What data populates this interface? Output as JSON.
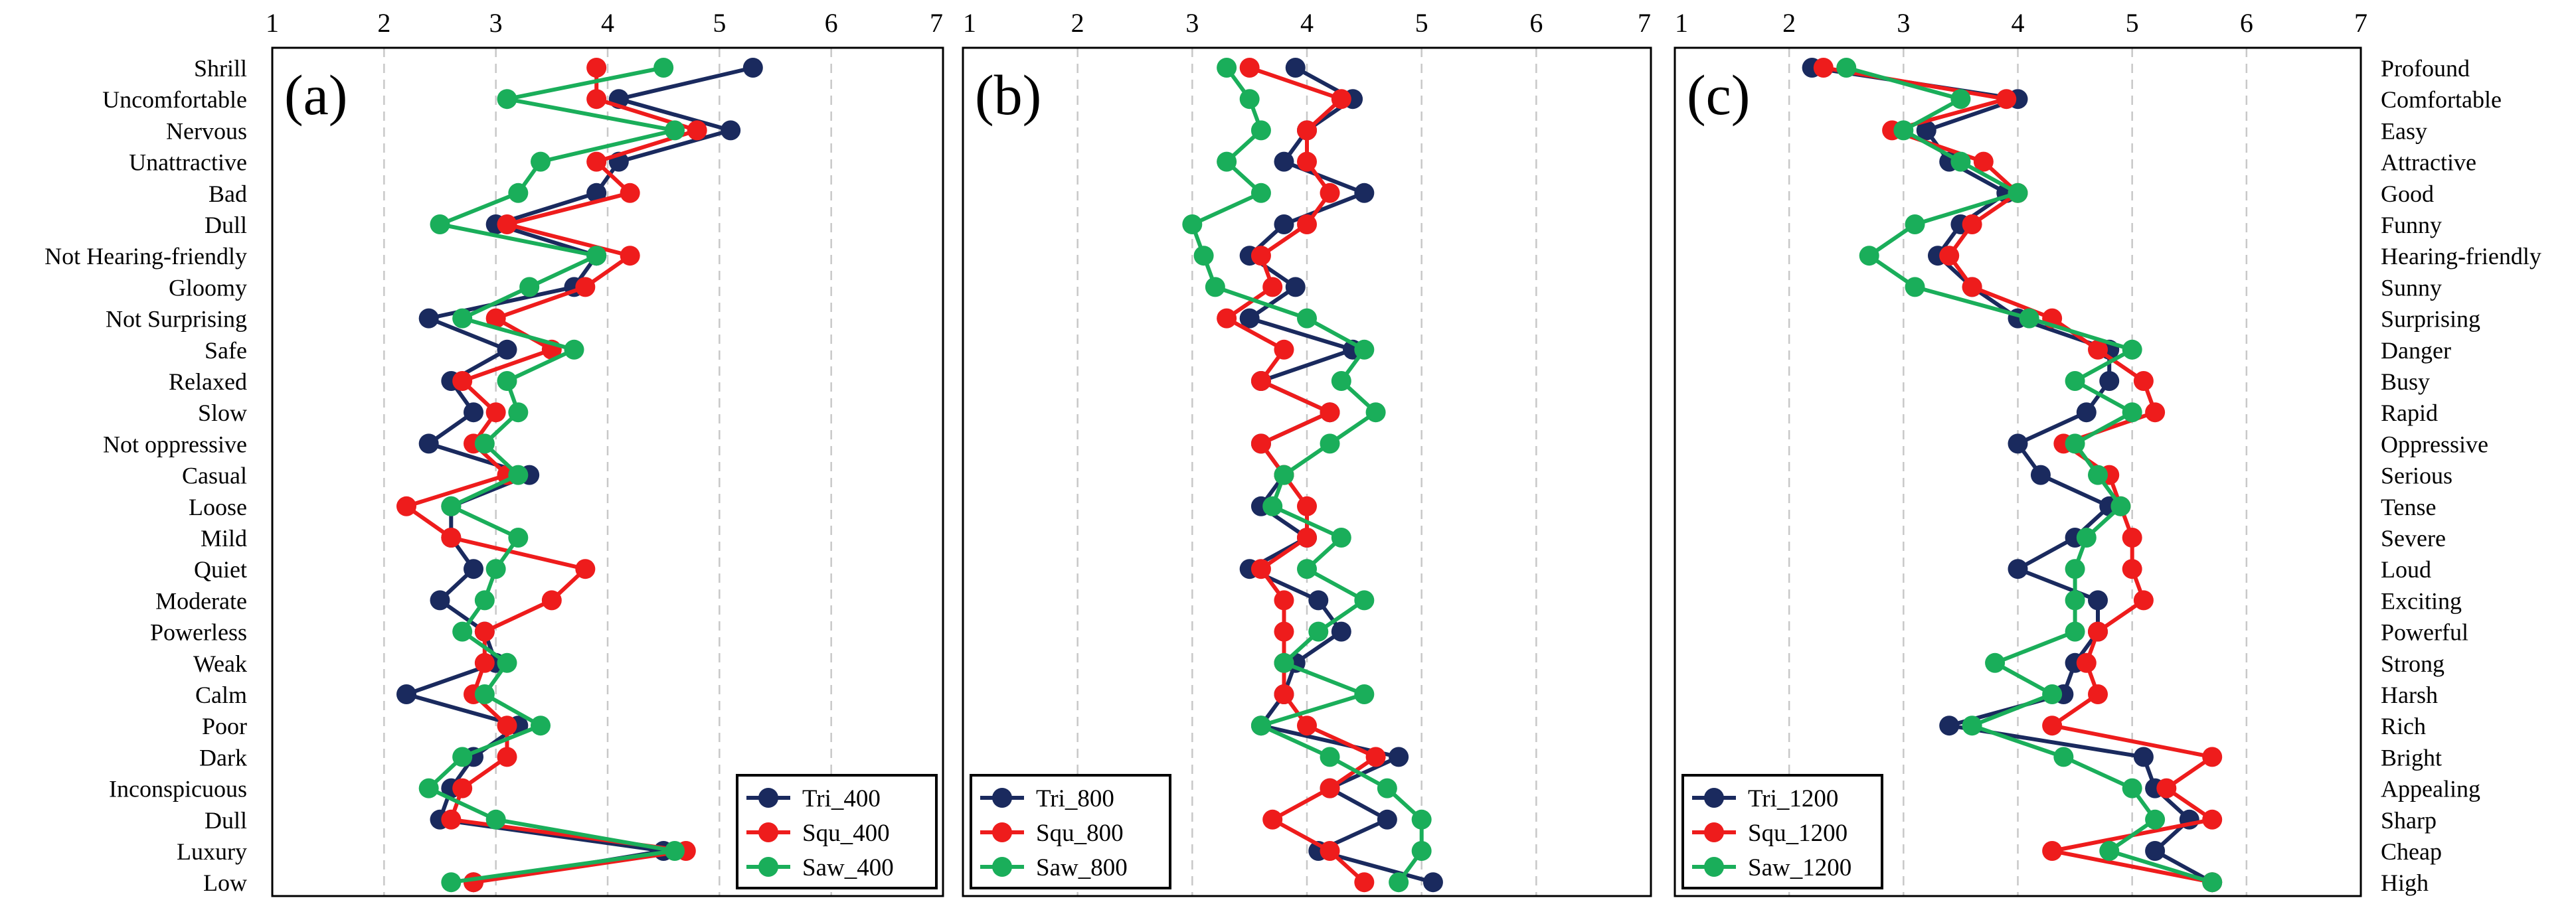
{
  "chart_data": {
    "type": "line",
    "x_ticks": [
      1,
      2,
      3,
      4,
      5,
      6,
      7
    ],
    "xlim": [
      1,
      7
    ],
    "grid": "vertical dashed",
    "left_labels": [
      "Shrill",
      "Uncomfortable",
      "Nervous",
      "Unattractive",
      "Bad",
      "Dull",
      "Not Hearing-friendly",
      "Gloomy",
      "Not Surprising",
      "Safe",
      "Relaxed",
      "Slow",
      "Not oppressive",
      "Casual",
      "Loose",
      "Mild",
      "Quiet",
      "Moderate",
      "Powerless",
      "Weak",
      "Calm",
      "Poor",
      "Dark",
      "Inconspicuous",
      "Dull",
      "Luxury",
      "Low"
    ],
    "right_labels": [
      "Profound",
      "Comfortable",
      "Easy",
      "Attractive",
      "Good",
      "Funny",
      "Hearing-friendly",
      "Sunny",
      "Surprising",
      "Danger",
      "Busy",
      "Rapid",
      "Oppressive",
      "Serious",
      "Tense",
      "Severe",
      "Loud",
      "Exciting",
      "Powerful",
      "Strong",
      "Harsh",
      "Rich",
      "Bright",
      "Appealing",
      "Sharp",
      "Cheap",
      "High"
    ],
    "series_colors": [
      "#1a2a5e",
      "#ee1c1c",
      "#1aae5a"
    ],
    "legend_position": "bottom-right of (a), bottom-left of (b) and (c)",
    "panels": [
      {
        "label": "(a)",
        "series": [
          {
            "name": "Tri_400",
            "values": [
              5.3,
              4.1,
              5.1,
              4.1,
              3.9,
              3.0,
              3.9,
              3.7,
              2.4,
              3.1,
              2.6,
              2.8,
              2.4,
              3.3,
              2.6,
              2.6,
              2.8,
              2.5,
              2.9,
              3.0,
              2.2,
              3.2,
              2.8,
              2.6,
              2.5,
              4.5,
              2.8
            ]
          },
          {
            "name": "Squ_400",
            "values": [
              3.9,
              3.9,
              4.8,
              3.9,
              4.2,
              3.1,
              4.2,
              3.8,
              3.0,
              3.5,
              2.7,
              3.0,
              2.8,
              3.1,
              2.2,
              2.6,
              3.8,
              3.5,
              2.9,
              2.9,
              2.8,
              3.1,
              3.1,
              2.7,
              2.6,
              4.7,
              2.8
            ]
          },
          {
            "name": "Saw_400",
            "values": [
              4.5,
              3.1,
              4.6,
              3.4,
              3.2,
              2.5,
              3.9,
              3.3,
              2.7,
              3.7,
              3.1,
              3.2,
              2.9,
              3.2,
              2.6,
              3.2,
              3.0,
              2.9,
              2.7,
              3.1,
              2.9,
              3.4,
              2.7,
              2.4,
              3.0,
              4.6,
              2.6
            ]
          }
        ]
      },
      {
        "label": "(b)",
        "series": [
          {
            "name": "Tri_800",
            "values": [
              3.9,
              4.4,
              4.0,
              3.8,
              4.5,
              3.8,
              3.5,
              3.9,
              3.5,
              4.4,
              3.6,
              4.2,
              3.6,
              3.8,
              3.6,
              4.0,
              3.5,
              4.1,
              4.3,
              3.9,
              3.8,
              3.6,
              4.8,
              4.2,
              4.7,
              4.1,
              5.1
            ]
          },
          {
            "name": "Squ_800",
            "values": [
              3.5,
              4.3,
              4.0,
              4.0,
              4.2,
              4.0,
              3.6,
              3.7,
              3.3,
              3.8,
              3.6,
              4.2,
              3.6,
              3.8,
              4.0,
              4.0,
              3.6,
              3.8,
              3.8,
              3.8,
              3.8,
              4.0,
              4.6,
              4.2,
              3.7,
              4.2,
              4.5
            ]
          },
          {
            "name": "Saw_800",
            "values": [
              3.3,
              3.5,
              3.6,
              3.3,
              3.6,
              3.0,
              3.1,
              3.2,
              4.0,
              4.5,
              4.3,
              4.6,
              4.2,
              3.8,
              3.7,
              4.3,
              4.0,
              4.5,
              4.1,
              3.8,
              4.5,
              3.6,
              4.2,
              4.7,
              5.0,
              5.0,
              4.8
            ]
          }
        ]
      },
      {
        "label": "(c)",
        "series": [
          {
            "name": "Tri_1200",
            "values": [
              2.2,
              4.0,
              3.2,
              3.4,
              3.9,
              3.5,
              3.3,
              3.6,
              4.0,
              4.8,
              4.8,
              4.6,
              4.0,
              4.2,
              4.8,
              4.5,
              4.0,
              4.7,
              4.7,
              4.5,
              4.4,
              3.4,
              5.1,
              5.2,
              5.5,
              5.2,
              5.7
            ]
          },
          {
            "name": "Squ_1200",
            "values": [
              2.3,
              3.9,
              2.9,
              3.7,
              4.0,
              3.6,
              3.4,
              3.6,
              4.3,
              4.7,
              5.1,
              5.2,
              4.4,
              4.8,
              4.9,
              5.0,
              5.0,
              5.1,
              4.7,
              4.6,
              4.7,
              4.3,
              5.7,
              5.3,
              5.7,
              4.3,
              5.7
            ]
          },
          {
            "name": "Saw_1200",
            "values": [
              2.5,
              3.5,
              3.0,
              3.5,
              4.0,
              3.1,
              2.7,
              3.1,
              4.1,
              5.0,
              4.5,
              5.0,
              4.5,
              4.7,
              4.9,
              4.6,
              4.5,
              4.5,
              4.5,
              3.8,
              4.3,
              3.6,
              4.4,
              5.0,
              5.2,
              4.8,
              5.7
            ]
          }
        ]
      }
    ]
  }
}
